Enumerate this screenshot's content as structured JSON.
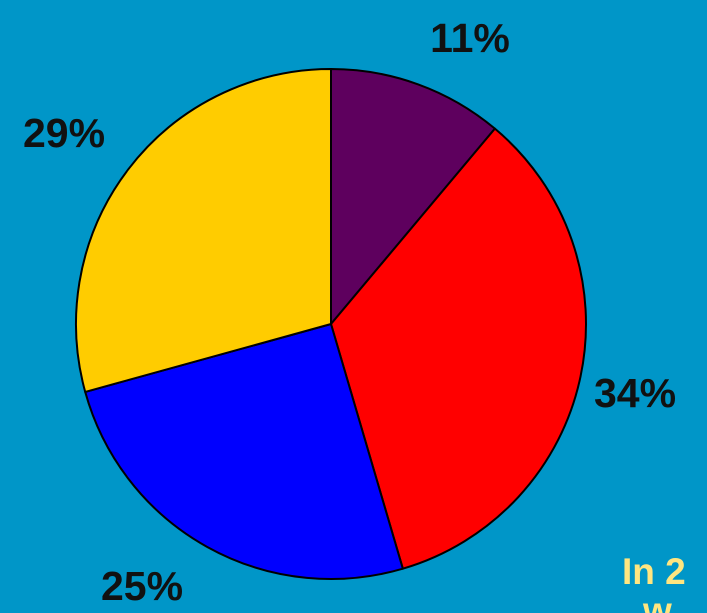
{
  "chart_data": {
    "type": "pie",
    "values": [
      11,
      34,
      25,
      29
    ],
    "labels": [
      "11%",
      "34%",
      "25%",
      "29%"
    ],
    "colors": [
      "#5e005e",
      "#ff0000",
      "#0000ff",
      "#ffcc00"
    ],
    "start_angle_deg": 0,
    "direction": "clockwise",
    "legend": "none",
    "title": ""
  },
  "caption": {
    "line1": "In 2",
    "line2": "w"
  },
  "colors": {
    "background": "#0096c8",
    "caption_text": "#ffe680",
    "label_text": "#111111"
  }
}
